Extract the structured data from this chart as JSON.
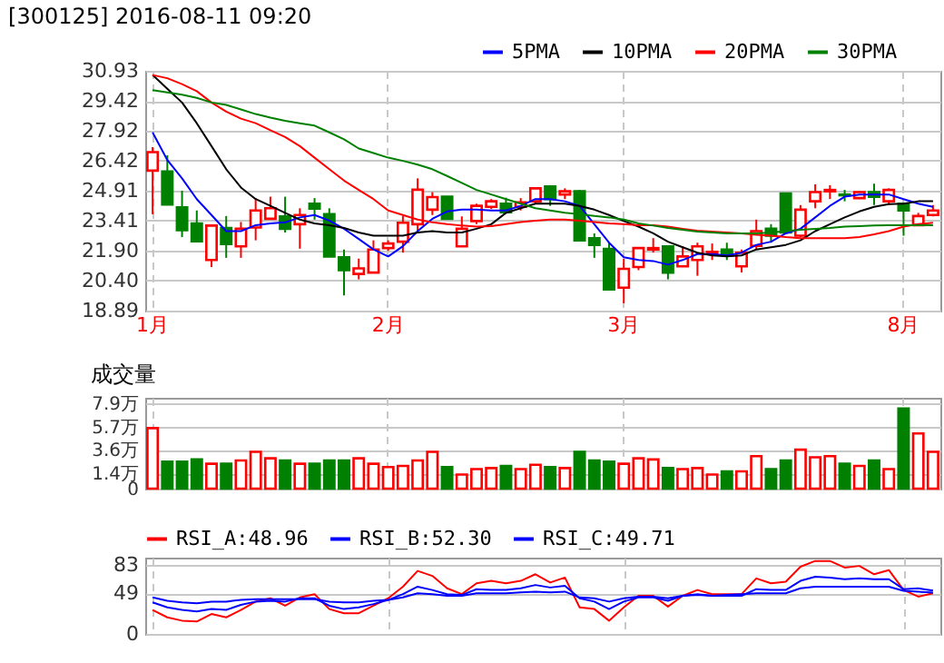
{
  "chart_data": [
    {
      "type": "candlestick",
      "title": "[300125] 2016-08-11 09:20",
      "categories": [
        "1月",
        null,
        null,
        null,
        null,
        null,
        null,
        null,
        null,
        null,
        null,
        null,
        null,
        null,
        null,
        null,
        "2月",
        null,
        null,
        null,
        null,
        null,
        null,
        null,
        null,
        null,
        null,
        null,
        null,
        null,
        null,
        null,
        "3月",
        null,
        null,
        null,
        null,
        null,
        null,
        null,
        null,
        null,
        null,
        null,
        null,
        null,
        null,
        null,
        null,
        null,
        null,
        "8月",
        null,
        null
      ],
      "ohlc": [
        [
          25.92,
          27.1,
          23.73,
          26.85
        ],
        [
          25.88,
          26.69,
          24.2,
          24.22
        ],
        [
          24.08,
          24.91,
          22.58,
          22.93
        ],
        [
          23.27,
          23.92,
          22.37,
          22.37
        ],
        [
          21.43,
          23.16,
          21.08,
          23.16
        ],
        [
          23.04,
          23.64,
          21.54,
          22.23
        ],
        [
          22.12,
          23.34,
          21.54,
          23.0
        ],
        [
          23.06,
          24.54,
          22.42,
          23.92
        ],
        [
          23.5,
          24.61,
          23.45,
          24.03
        ],
        [
          23.62,
          24.61,
          22.81,
          23.0
        ],
        [
          23.23,
          24.03,
          22.0,
          23.69
        ],
        [
          24.26,
          24.54,
          23.46,
          24.01
        ],
        [
          23.73,
          24.03,
          21.61,
          21.61
        ],
        [
          21.57,
          21.96,
          19.65,
          20.92
        ],
        [
          20.73,
          21.5,
          20.46,
          21.01
        ],
        [
          20.8,
          22.42,
          20.8,
          21.96
        ],
        [
          22.03,
          22.42,
          21.89,
          22.26
        ],
        [
          22.35,
          23.64,
          21.8,
          23.3
        ],
        [
          23.23,
          25.53,
          22.77,
          24.96
        ],
        [
          23.96,
          24.84,
          23.69,
          24.59
        ],
        [
          24.61,
          24.61,
          23.5,
          23.5
        ],
        [
          22.12,
          23.62,
          22.12,
          23.0
        ],
        [
          23.39,
          24.26,
          23.23,
          24.15
        ],
        [
          24.1,
          24.49,
          23.99,
          24.38
        ],
        [
          24.26,
          24.56,
          23.76,
          23.83
        ],
        [
          24.1,
          24.54,
          23.92,
          24.33
        ],
        [
          24.38,
          25.03,
          24.26,
          25.03
        ],
        [
          25.12,
          25.19,
          24.15,
          24.49
        ],
        [
          24.72,
          25.03,
          24.49,
          24.88
        ],
        [
          24.88,
          24.95,
          22.42,
          22.42
        ],
        [
          22.53,
          22.77,
          21.54,
          22.19
        ],
        [
          21.99,
          22.3,
          19.95,
          19.95
        ],
        [
          20.04,
          21.5,
          19.26,
          20.99
        ],
        [
          21.08,
          22.03,
          20.92,
          22.03
        ],
        [
          21.96,
          22.53,
          21.8,
          22.03
        ],
        [
          22.12,
          22.12,
          20.46,
          20.8
        ],
        [
          21.11,
          22.12,
          21.11,
          21.61
        ],
        [
          21.43,
          22.3,
          20.64,
          22.12
        ],
        [
          21.73,
          22.26,
          21.43,
          21.84
        ],
        [
          21.96,
          22.3,
          21.43,
          21.73
        ],
        [
          21.11,
          21.96,
          20.8,
          21.8
        ],
        [
          22.14,
          23.46,
          21.96,
          22.88
        ],
        [
          23.0,
          23.23,
          22.3,
          22.65
        ],
        [
          24.77,
          24.77,
          22.81,
          22.81
        ],
        [
          22.65,
          24.19,
          22.58,
          23.96
        ],
        [
          24.38,
          25.23,
          24.03,
          24.84
        ],
        [
          24.88,
          25.19,
          24.49,
          24.95
        ],
        [
          24.72,
          24.95,
          24.38,
          24.68
        ],
        [
          24.54,
          24.84,
          24.49,
          24.84
        ],
        [
          24.84,
          25.26,
          24.19,
          24.61
        ],
        [
          24.38,
          25.03,
          24.19,
          24.95
        ],
        [
          24.26,
          24.26,
          22.65,
          23.92
        ],
        [
          23.18,
          23.8,
          23.18,
          23.64
        ],
        [
          23.69,
          24.19,
          23.62,
          23.92
        ]
      ],
      "colors": [
        "#ff0000",
        "#008000",
        "#008000",
        "#008000",
        "#ff0000",
        "#008000",
        "#ff0000",
        "#ff0000",
        "#ff0000",
        "#008000",
        "#ff0000",
        "#008000",
        "#008000",
        "#008000",
        "#ff0000",
        "#ff0000",
        "#ff0000",
        "#ff0000",
        "#ff0000",
        "#ff0000",
        "#008000",
        "#ff0000",
        "#ff0000",
        "#ff0000",
        "#008000",
        "#ff0000",
        "#ff0000",
        "#008000",
        "#ff0000",
        "#008000",
        "#008000",
        "#008000",
        "#ff0000",
        "#ff0000",
        "#ff0000",
        "#008000",
        "#ff0000",
        "#ff0000",
        "#ff0000",
        "#008000",
        "#ff0000",
        "#ff0000",
        "#008000",
        "#008000",
        "#ff0000",
        "#ff0000",
        "#ff0000",
        "#008000",
        "#ff0000",
        "#008000",
        "#ff0000",
        "#008000",
        "#ff0000",
        "#ff0000"
      ],
      "series": [
        {
          "name": "5PMA",
          "type": "line",
          "color": "#0000ff",
          "values": [
            27.84,
            26.45,
            25.53,
            24.49,
            23.69,
            22.88,
            22.88,
            23.18,
            23.27,
            23.32,
            23.57,
            23.69,
            23.41,
            23.0,
            22.49,
            21.96,
            21.61,
            22.12,
            22.88,
            23.5,
            23.87,
            23.96,
            23.96,
            23.92,
            23.92,
            24.15,
            24.49,
            24.49,
            24.38,
            24.15,
            23.23,
            22.3,
            21.57,
            21.43,
            21.38,
            21.2,
            21.43,
            21.73,
            21.73,
            21.66,
            21.8,
            22.19,
            22.35,
            22.77,
            23.0,
            23.57,
            24.15,
            24.61,
            24.72,
            24.72,
            24.72,
            24.49,
            24.26,
            24.1
          ]
        },
        {
          "name": "10PMA",
          "type": "line",
          "color": "#000000",
          "values": [
            30.72,
            30.03,
            29.34,
            28.3,
            27.15,
            25.99,
            25.07,
            24.49,
            24.15,
            23.8,
            23.46,
            23.27,
            23.18,
            23.04,
            22.81,
            22.65,
            22.65,
            22.65,
            22.81,
            22.88,
            22.81,
            22.81,
            23.0,
            23.23,
            23.8,
            24.03,
            24.26,
            24.26,
            24.26,
            24.15,
            23.96,
            23.69,
            23.39,
            23.11,
            22.77,
            22.35,
            22.07,
            21.8,
            21.66,
            21.61,
            21.66,
            21.96,
            22.07,
            22.19,
            22.42,
            22.88,
            23.23,
            23.57,
            23.87,
            24.1,
            24.24,
            24.26,
            24.38,
            24.38
          ]
        },
        {
          "name": "20PMA",
          "type": "line",
          "color": "#ff0000",
          "values": [
            30.72,
            30.56,
            30.26,
            29.91,
            29.34,
            28.88,
            28.53,
            28.3,
            27.95,
            27.61,
            27.15,
            26.57,
            25.99,
            25.42,
            24.95,
            24.49,
            23.92,
            23.69,
            23.46,
            23.32,
            23.23,
            23.16,
            23.11,
            23.13,
            23.23,
            23.34,
            23.41,
            23.46,
            23.46,
            23.41,
            23.34,
            23.27,
            23.23,
            23.18,
            23.18,
            23.11,
            23.0,
            22.9,
            22.86,
            22.81,
            22.77,
            22.7,
            22.65,
            22.58,
            22.53,
            22.53,
            22.53,
            22.53,
            22.58,
            22.72,
            22.88,
            23.11,
            23.23,
            23.3
          ]
        },
        {
          "name": "30PMA",
          "type": "line",
          "color": "#008000",
          "values": [
            29.96,
            29.85,
            29.73,
            29.57,
            29.34,
            29.22,
            28.99,
            28.76,
            28.58,
            28.42,
            28.3,
            28.18,
            27.84,
            27.49,
            27.03,
            26.8,
            26.57,
            26.41,
            26.22,
            25.99,
            25.65,
            25.3,
            24.95,
            24.72,
            24.49,
            24.26,
            24.03,
            23.92,
            23.8,
            23.73,
            23.64,
            23.57,
            23.46,
            23.27,
            23.16,
            23.04,
            22.95,
            22.86,
            22.81,
            22.77,
            22.77,
            22.77,
            22.81,
            22.88,
            22.95,
            23.0,
            23.04,
            23.11,
            23.13,
            23.16,
            23.18,
            23.18,
            23.18,
            23.18
          ]
        }
      ],
      "ylim": [
        18.89,
        30.93
      ],
      "yticks": [
        18.89,
        {
          "value": 20.4,
          "label": "20.40"
        },
        {
          "value": 21.9,
          "label": "21.90"
        },
        23.41,
        24.91,
        26.42,
        27.92,
        29.42,
        30.93
      ],
      "grid": true,
      "legend": "top right"
    },
    {
      "type": "bar",
      "title": "成交量",
      "categories": [
        null,
        null,
        null,
        null,
        null,
        null,
        null,
        null,
        null,
        null,
        null,
        null,
        null,
        null,
        null,
        null,
        null,
        null,
        null,
        null,
        null,
        null,
        null,
        null,
        null,
        null,
        null,
        null,
        null,
        null,
        null,
        null,
        null,
        null,
        null,
        null,
        null,
        null,
        null,
        null,
        null,
        null,
        null,
        null,
        null,
        null,
        null,
        null,
        null,
        null,
        null,
        null,
        null,
        null
      ],
      "values": [
        5.6,
        2.5,
        2.5,
        2.7,
        2.3,
        2.3,
        2.6,
        3.4,
        2.8,
        2.6,
        2.3,
        2.3,
        2.6,
        2.6,
        2.8,
        2.3,
        2.0,
        2.1,
        2.6,
        3.4,
        2.0,
        1.3,
        1.8,
        1.9,
        2.1,
        1.8,
        2.2,
        2.0,
        1.9,
        3.4,
        2.6,
        2.5,
        2.3,
        2.8,
        2.7,
        1.9,
        1.8,
        1.9,
        1.3,
        1.6,
        1.6,
        3.0,
        1.8,
        2.6,
        3.6,
        2.9,
        3.0,
        2.3,
        2.1,
        2.6,
        1.8,
        7.4,
        5.1,
        3.4
      ],
      "colors": [
        "#ff0000",
        "#008000",
        "#008000",
        "#008000",
        "#ff0000",
        "#008000",
        "#ff0000",
        "#ff0000",
        "#ff0000",
        "#008000",
        "#ff0000",
        "#008000",
        "#008000",
        "#008000",
        "#ff0000",
        "#ff0000",
        "#ff0000",
        "#ff0000",
        "#ff0000",
        "#ff0000",
        "#008000",
        "#ff0000",
        "#ff0000",
        "#ff0000",
        "#008000",
        "#ff0000",
        "#ff0000",
        "#008000",
        "#ff0000",
        "#008000",
        "#008000",
        "#008000",
        "#ff0000",
        "#ff0000",
        "#ff0000",
        "#008000",
        "#ff0000",
        "#ff0000",
        "#ff0000",
        "#008000",
        "#ff0000",
        "#ff0000",
        "#008000",
        "#008000",
        "#ff0000",
        "#ff0000",
        "#ff0000",
        "#008000",
        "#ff0000",
        "#008000",
        "#ff0000",
        "#008000",
        "#ff0000",
        "#ff0000"
      ],
      "ylim": [
        0,
        8.4
      ],
      "yticks": [
        0,
        {
          "value": 1.4,
          "label": "1.4万"
        },
        {
          "value": 3.6,
          "label": "3.6万"
        },
        {
          "value": 5.7,
          "label": "5.7万"
        },
        {
          "value": 7.9,
          "label": "7.9万"
        }
      ],
      "grid": true,
      "tick_labels": "y"
    },
    {
      "type": "line",
      "categories": [
        null,
        null,
        null,
        null,
        null,
        null,
        null,
        null,
        null,
        null,
        null,
        null,
        null,
        null,
        null,
        null,
        null,
        null,
        null,
        null,
        null,
        null,
        null,
        null,
        null,
        null,
        null,
        null,
        null,
        null,
        null,
        null,
        null,
        null,
        null,
        null,
        null,
        null,
        null,
        null,
        null,
        null,
        null,
        null,
        null,
        null,
        null,
        null,
        null,
        null,
        null,
        null,
        null,
        null
      ],
      "series": [
        {
          "name": "RSI_A:48.96",
          "color": "#ff0000",
          "values": [
            29,
            20,
            16,
            15,
            24,
            20,
            29,
            39,
            43,
            34,
            44,
            48,
            30,
            25,
            25,
            34,
            43,
            57,
            76,
            70,
            55,
            48,
            61,
            64,
            61,
            64,
            72,
            62,
            68,
            32,
            30,
            16,
            32,
            46,
            46,
            33,
            46,
            53,
            48,
            48,
            48,
            67,
            61,
            63,
            81,
            88,
            88,
            80,
            82,
            72,
            77,
            53,
            45,
            48.96
          ]
        },
        {
          "name": "RSI_B:52.30",
          "color": "#0000ff",
          "values": [
            38,
            32,
            29,
            27,
            30,
            29,
            35,
            39,
            40,
            39,
            43,
            43,
            34,
            30,
            32,
            36,
            41,
            48,
            57,
            53,
            48,
            47,
            54,
            53,
            53,
            55,
            59,
            56,
            58,
            43,
            39,
            30,
            39,
            44,
            44,
            40,
            46,
            48,
            46,
            46,
            46,
            54,
            53,
            53,
            64,
            69,
            68,
            66,
            67,
            66,
            66,
            54,
            55,
            52.3
          ]
        },
        {
          "name": "RSI_C:49.71",
          "color": "#0000ff",
          "values": [
            44,
            40,
            38,
            37,
            39,
            39,
            41,
            42,
            42,
            42,
            42,
            42,
            39,
            38,
            38,
            40,
            41,
            44,
            49,
            48,
            46,
            46,
            49,
            49,
            49,
            50,
            51,
            50,
            51,
            44,
            43,
            39,
            43,
            45,
            45,
            43,
            46,
            47,
            46,
            47,
            48,
            49,
            49,
            49,
            55,
            57,
            57,
            57,
            57,
            57,
            57,
            52,
            51,
            49.71
          ]
        }
      ],
      "ylim": [
        0,
        92
      ],
      "yticks": [
        0,
        49,
        83
      ],
      "grid": true,
      "legend": "top left",
      "tick_labels": "y"
    }
  ]
}
